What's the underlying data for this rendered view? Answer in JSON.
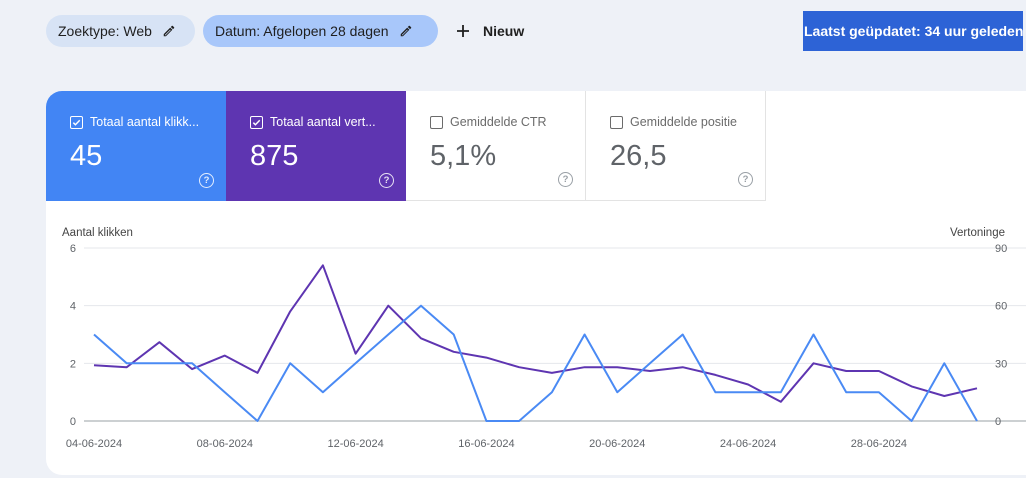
{
  "filters": {
    "search_type": "Zoektype: Web",
    "date": "Datum: Afgelopen 28 dagen",
    "new_label": "Nieuw"
  },
  "last_updated": "Laatst geüpdatet: 34 uur geleden",
  "metrics": [
    {
      "label": "Totaal aantal klikk...",
      "value": "45",
      "checked": true,
      "color": "#4285f4"
    },
    {
      "label": "Totaal aantal vert...",
      "value": "875",
      "checked": true,
      "color": "#5e35b1"
    },
    {
      "label": "Gemiddelde CTR",
      "value": "5,1%",
      "checked": false,
      "color": "#ffffff"
    },
    {
      "label": "Gemiddelde positie",
      "value": "26,5",
      "checked": false,
      "color": "#ffffff"
    }
  ],
  "icons": {
    "edit": "pencil-icon",
    "add": "plus-icon",
    "check": "checkbox-icon",
    "help": "help-circle-icon"
  },
  "chart_data": {
    "type": "line",
    "x": [
      "04-06-2024",
      "05-06-2024",
      "06-06-2024",
      "07-06-2024",
      "08-06-2024",
      "09-06-2024",
      "10-06-2024",
      "11-06-2024",
      "12-06-2024",
      "13-06-2024",
      "14-06-2024",
      "15-06-2024",
      "16-06-2024",
      "17-06-2024",
      "18-06-2024",
      "19-06-2024",
      "20-06-2024",
      "21-06-2024",
      "22-06-2024",
      "23-06-2024",
      "24-06-2024",
      "25-06-2024",
      "26-06-2024",
      "27-06-2024",
      "28-06-2024",
      "29-06-2024",
      "30-06-2024",
      "01-07-2024"
    ],
    "x_tick_labels": [
      "04-06-2024",
      "08-06-2024",
      "12-06-2024",
      "16-06-2024",
      "20-06-2024",
      "24-06-2024",
      "28-06-2024"
    ],
    "ylabel_left": "Aantal klikken",
    "ylabel_right": "Vertoninge",
    "ylim_left": [
      0,
      6
    ],
    "ylim_right": [
      0,
      90
    ],
    "y_ticks_left": [
      "0",
      "2",
      "4",
      "6"
    ],
    "y_ticks_right": [
      "0",
      "30",
      "60",
      "90"
    ],
    "grid": true,
    "series": [
      {
        "axis": "left",
        "color": "#4a8af4",
        "values": [
          3,
          2,
          2,
          2,
          1,
          0,
          2,
          1,
          2,
          3,
          4,
          3,
          0,
          0,
          1,
          3,
          1,
          2,
          3,
          1,
          1,
          1,
          3,
          1,
          1,
          0,
          2,
          0
        ]
      },
      {
        "axis": "right",
        "color": "#5e35b1",
        "values": [
          29,
          28,
          41,
          27,
          34,
          25,
          57,
          81,
          35,
          60,
          43,
          36,
          33,
          28,
          25,
          28,
          28,
          26,
          28,
          24,
          19,
          10,
          30,
          26,
          26,
          18,
          13,
          17
        ]
      }
    ]
  }
}
